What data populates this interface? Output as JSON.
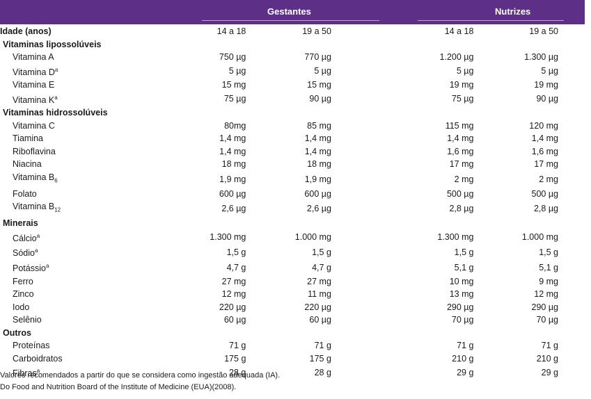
{
  "header": {
    "groups": [
      "Gestantes",
      "Nutrizes"
    ]
  },
  "table": {
    "age_row": {
      "label": "Idade (anos)",
      "values": [
        "14 a 18",
        "19 a 50",
        "14 a 18",
        "19 a 50"
      ]
    },
    "sections": [
      {
        "title": "Vitaminas lipossolúveis",
        "rows": [
          {
            "label": "Vitamina A",
            "sup": "",
            "sub": "",
            "values": [
              "750 µg",
              "770 µg",
              "1.200 µg",
              "1.300 µg"
            ]
          },
          {
            "label": "Vitamina D",
            "sup": "a",
            "sub": "",
            "values": [
              "5 µg",
              "5 µg",
              "5 µg",
              "5 µg"
            ]
          },
          {
            "label": "Vitamina E",
            "sup": "",
            "sub": "",
            "values": [
              "15 mg",
              "15 mg",
              "19 mg",
              "19 mg"
            ]
          },
          {
            "label": "Vitamina K",
            "sup": "a",
            "sub": "",
            "values": [
              "75 µg",
              "90 µg",
              "75 µg",
              "90 µg"
            ]
          }
        ]
      },
      {
        "title": "Vitaminas hidrossolúveis",
        "rows": [
          {
            "label": "Vitamina C",
            "sup": "",
            "sub": "",
            "values": [
              "80mg",
              "85 mg",
              "115 mg",
              "120 mg"
            ]
          },
          {
            "label": "Tiamina",
            "sup": "",
            "sub": "",
            "values": [
              "1,4 mg",
              "1,4 mg",
              "1,4 mg",
              "1,4 mg"
            ]
          },
          {
            "label": "Riboflavina",
            "sup": "",
            "sub": "",
            "values": [
              "1,4 mg",
              "1,4 mg",
              "1,6 mg",
              "1,6 mg"
            ]
          },
          {
            "label": "Niacina",
            "sup": "",
            "sub": "",
            "values": [
              "18 mg",
              "18 mg",
              "17 mg",
              "17 mg"
            ]
          },
          {
            "label": "Vitamina B",
            "sup": "",
            "sub": "6",
            "values": [
              "1,9 mg",
              "1,9 mg",
              "2 mg",
              "2 mg"
            ]
          },
          {
            "label": "Folato",
            "sup": "",
            "sub": "",
            "values": [
              "600 µg",
              "600 µg",
              "500 µg",
              "500 µg"
            ]
          },
          {
            "label": "Vitamina B",
            "sup": "",
            "sub": "12",
            "values": [
              "2,6 µg",
              "2,6 µg",
              "2,8 µg",
              "2,8 µg"
            ]
          }
        ]
      },
      {
        "title": "Minerais",
        "rows": [
          {
            "label": "Cálcio",
            "sup": "a",
            "sub": "",
            "values": [
              "1.300 mg",
              "1.000 mg",
              "1.300 mg",
              "1.000 mg"
            ]
          },
          {
            "label": "Sódio",
            "sup": "a",
            "sub": "",
            "values": [
              "1,5 g",
              "1,5 g",
              "1,5 g",
              "1,5 g"
            ]
          },
          {
            "label": "Potássio",
            "sup": "a",
            "sub": "",
            "values": [
              "4,7 g",
              "4,7 g",
              "5,1 g",
              "5,1 g"
            ]
          },
          {
            "label": "Ferro",
            "sup": "",
            "sub": "",
            "values": [
              "27 mg",
              "27 mg",
              "10 mg",
              "9 mg"
            ]
          },
          {
            "label": "Zinco",
            "sup": "",
            "sub": "",
            "values": [
              "12 mg",
              "11 mg",
              "13 mg",
              "12 mg"
            ]
          },
          {
            "label": "Iodo",
            "sup": "",
            "sub": "",
            "values": [
              "220 µg",
              "220 µg",
              "290 µg",
              "290 µg"
            ]
          },
          {
            "label": "Selênio",
            "sup": "",
            "sub": "",
            "values": [
              "60 µg",
              "60 µg",
              "70 µg",
              "70 µg"
            ]
          }
        ]
      },
      {
        "title": "Outros",
        "rows": [
          {
            "label": "Proteínas",
            "sup": "",
            "sub": "",
            "values": [
              "71 g",
              "71 g",
              "71 g",
              "71 g"
            ]
          },
          {
            "label": "Carboidratos",
            "sup": "",
            "sub": "",
            "values": [
              "175 g",
              "175 g",
              "210 g",
              "210 g"
            ]
          },
          {
            "label": "Fibras",
            "sup": "a",
            "sub": "",
            "values": [
              "28 g",
              "28 g",
              "29 g",
              "29 g"
            ]
          }
        ]
      }
    ]
  },
  "footnotes": [
    "Valores recomendados a partir do que se considera como ingestão adequada (IA).",
    "Do Food and Nutrition Board of the Institute of Medicine (EUA)(2008)."
  ],
  "colors": {
    "header_bg": "#5e2f86",
    "header_text": "#ffffff"
  }
}
